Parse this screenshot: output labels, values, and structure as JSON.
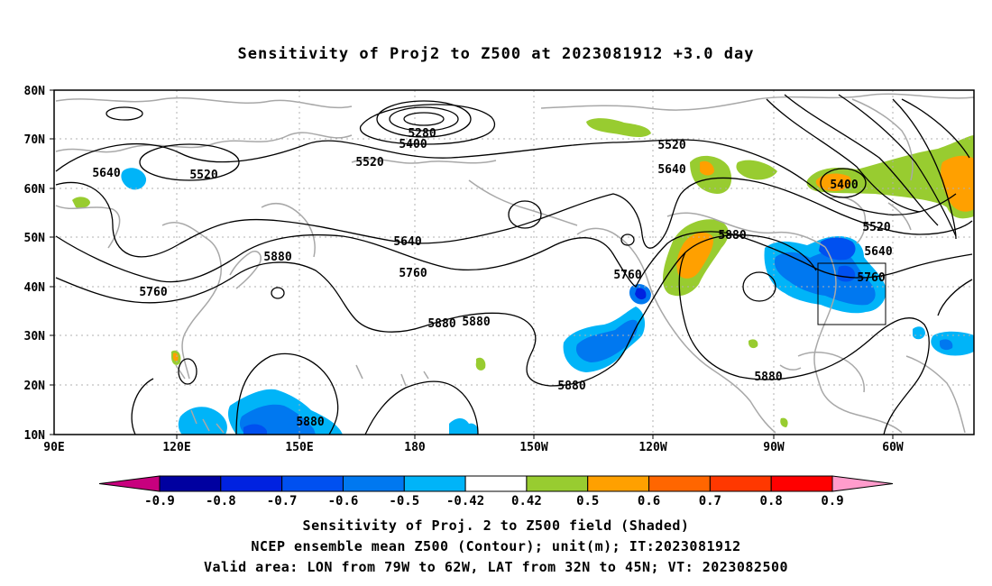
{
  "title": "Sensitivity of Proj2 to Z500 at 2023081912 +3.0 day",
  "lat_labels": [
    "80N",
    "70N",
    "60N",
    "50N",
    "40N",
    "30N",
    "20N",
    "10N"
  ],
  "lon_labels": [
    "90E",
    "120E",
    "150E",
    "180",
    "150W",
    "120W",
    "90W",
    "60W"
  ],
  "contour_labels": {
    "c5280": "5280",
    "c5400a": "5400",
    "c5400b": "5400",
    "c5520a": "5520",
    "c5520b": "5520",
    "c5520c": "5520",
    "c5520d": "5520",
    "c5640a": "5640",
    "c5640b": "5640",
    "c5640c": "5640",
    "c5640d": "5640",
    "c5760a": "5760",
    "c5760b": "5760",
    "c5760c": "5760",
    "c5760d": "5760",
    "c5880a": "5880",
    "c5880b": "5880",
    "c5880c": "5880",
    "c5880d": "5880",
    "c5880e": "5880",
    "c5880f": "5880",
    "c5880g": "5880"
  },
  "colorbar": {
    "labels": [
      "-0.9",
      "-0.8",
      "-0.7",
      "-0.6",
      "-0.5",
      "-0.42",
      "0.42",
      "0.5",
      "0.6",
      "0.7",
      "0.8",
      "0.9"
    ],
    "colors": [
      "#c8007e",
      "#0000a0",
      "#0022e0",
      "#0050f0",
      "#0078f0",
      "#00b4f8",
      "#ffffff",
      "#98cc30",
      "#ffa000",
      "#ff6600",
      "#ff3800",
      "#ff0000",
      "#ff9ccc"
    ]
  },
  "colors": {
    "blue_dark": "#0050f0",
    "blue_mid": "#0078f0",
    "blue_light": "#00b4f8",
    "green": "#98cc30",
    "orange": "#ffa000",
    "coast": "#a8a8a8",
    "contour": "#000000"
  },
  "caption_line1": "Sensitivity of Proj. 2 to Z500 field (Shaded)",
  "caption_line2": "NCEP ensemble mean Z500 (Contour); unit(m); IT:2023081912",
  "caption_line3": "Valid area: LON from 79W to 62W, LAT from 32N to 45N; VT: 2023082500"
}
